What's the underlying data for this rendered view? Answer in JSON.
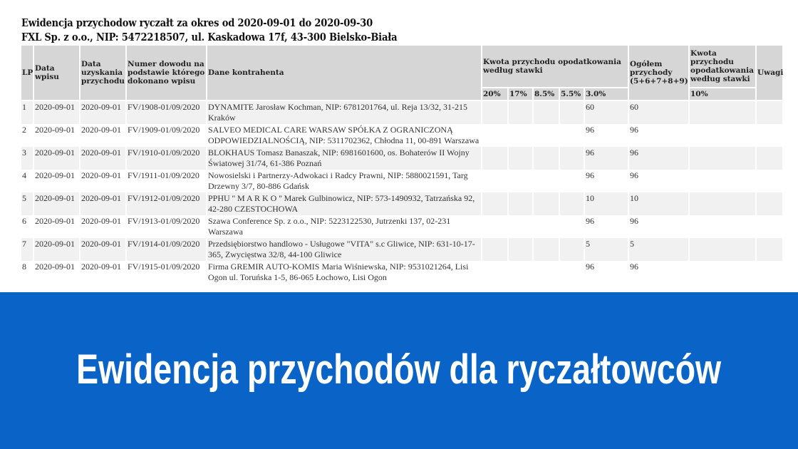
{
  "document": {
    "title": "Ewidencja przychodow ryczałt za okres od 2020-09-01 do 2020-09-30",
    "company": "FXL Sp. z o.o., NIP: 5472218507, ul. Kaskadowa 17f, 43-300 Bielsko-Biała"
  },
  "table": {
    "headers": {
      "lp": "LP",
      "data_wpisu": "Data wpisu",
      "data_uzyskania": "Data uzyskania przychodu",
      "numer_dowodu": "Numer dowodu na podstawie którego dokonano wpisu",
      "dane_kontrahenta": "Dane kontrahenta",
      "kwota_group": "Kwota przychodu opodatkowania według stawki",
      "rates": [
        "20%",
        "17%",
        "8.5%",
        "5.5%",
        "3.0%"
      ],
      "ogolem": "Ogółem przychody (5+6+7+8+9)",
      "kwota_10": "Kwota przychodu opodatkowania według stawki",
      "rate_10": "10%",
      "uwagi": "Uwagi"
    },
    "rows": [
      {
        "lp": "1",
        "data_wpisu": "2020-09-01",
        "data_uzyskania": "2020-09-01",
        "numer": "FV/1908-01/09/2020",
        "kontrahent": "DYNAMITE Jarosław Kochman, NIP: 6781201764, ul. Reja 13/32, 31-215 Kraków",
        "r20": "",
        "r17": "",
        "r85": "",
        "r55": "",
        "r30": "60",
        "ogolem": "60",
        "r10": "",
        "uwagi": ""
      },
      {
        "lp": "2",
        "data_wpisu": "2020-09-01",
        "data_uzyskania": "2020-09-01",
        "numer": "FV/1909-01/09/2020",
        "kontrahent": "SALVEO MEDICAL CARE WARSAW SPÓŁKA Z OGRANICZONĄ ODPOWIEDZIALNOŚCIĄ, NIP: 5311702362, Chłodna 11, 00-891 Warszawa",
        "r20": "",
        "r17": "",
        "r85": "",
        "r55": "",
        "r30": "96",
        "ogolem": "96",
        "r10": "",
        "uwagi": ""
      },
      {
        "lp": "3",
        "data_wpisu": "2020-09-01",
        "data_uzyskania": "2020-09-01",
        "numer": "FV/1910-01/09/2020",
        "kontrahent": "BLOKHAUS Tomasz Banaszak, NIP: 6981601600, os. Bohaterów II Wojny Światowej 31/74, 61-386 Poznań",
        "r20": "",
        "r17": "",
        "r85": "",
        "r55": "",
        "r30": "96",
        "ogolem": "96",
        "r10": "",
        "uwagi": ""
      },
      {
        "lp": "4",
        "data_wpisu": "2020-09-01",
        "data_uzyskania": "2020-09-01",
        "numer": "FV/1911-01/09/2020",
        "kontrahent": "Nowosielski i Partnerzy-Adwokaci i Radcy Prawni, NIP: 5880021591, Targ Drzewny 3/7, 80-886 Gdańsk",
        "r20": "",
        "r17": "",
        "r85": "",
        "r55": "",
        "r30": "96",
        "ogolem": "96",
        "r10": "",
        "uwagi": ""
      },
      {
        "lp": "5",
        "data_wpisu": "2020-09-01",
        "data_uzyskania": "2020-09-01",
        "numer": "FV/1912-01/09/2020",
        "kontrahent": "PPHU '' M A R K O '' Marek Gulbinowicz, NIP: 573-1490932, Tatrzańska 92, 42-280 CZESTOCHOWA",
        "r20": "",
        "r17": "",
        "r85": "",
        "r55": "",
        "r30": "10",
        "ogolem": "10",
        "r10": "",
        "uwagi": ""
      },
      {
        "lp": "6",
        "data_wpisu": "2020-09-01",
        "data_uzyskania": "2020-09-01",
        "numer": "FV/1913-01/09/2020",
        "kontrahent": "Szawa Conference Sp. z o.o., NIP: 5223122530, Jutrzenki 137, 02-231 Warszawa",
        "r20": "",
        "r17": "",
        "r85": "",
        "r55": "",
        "r30": "96",
        "ogolem": "96",
        "r10": "",
        "uwagi": ""
      },
      {
        "lp": "7",
        "data_wpisu": "2020-09-01",
        "data_uzyskania": "2020-09-01",
        "numer": "FV/1914-01/09/2020",
        "kontrahent": "Przedsiębiorstwo handlowo - Usługowe \"VITA\" s.c Gliwice, NIP: 631-10-17-365, Zwycięstwa 32/8, 44-100 Gliwice",
        "r20": "",
        "r17": "",
        "r85": "",
        "r55": "",
        "r30": "5",
        "ogolem": "5",
        "r10": "",
        "uwagi": ""
      },
      {
        "lp": "8",
        "data_wpisu": "2020-09-01",
        "data_uzyskania": "2020-09-01",
        "numer": "FV/1915-01/09/2020",
        "kontrahent": "Firma GREMIR AUTO-KOMIS Maria Wiśniewska, NIP: 9531021264, Lisi Ogon ul. Toruńska 1-5, 86-065 Łochowo, Lisi Ogon",
        "r20": "",
        "r17": "",
        "r85": "",
        "r55": "",
        "r30": "96",
        "ogolem": "96",
        "r10": "",
        "uwagi": ""
      }
    ]
  },
  "banner": {
    "text": "Ewidencja przychodów dla ryczałtowców",
    "color": "#0a64c8"
  }
}
